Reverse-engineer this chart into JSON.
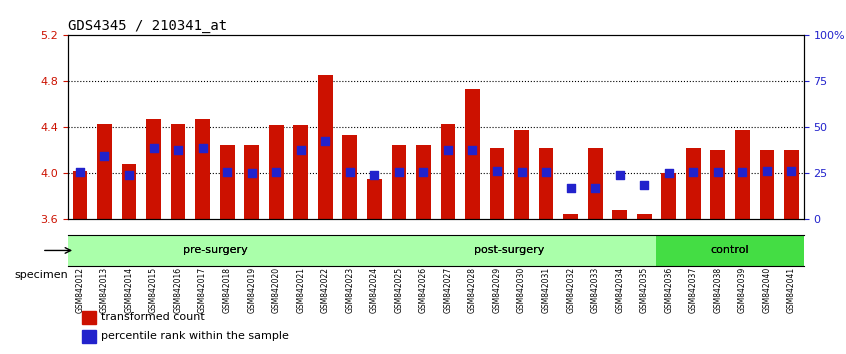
{
  "title": "GDS4345 / 210341_at",
  "samples": [
    "GSM842012",
    "GSM842013",
    "GSM842014",
    "GSM842015",
    "GSM842016",
    "GSM842017",
    "GSM842018",
    "GSM842019",
    "GSM842020",
    "GSM842021",
    "GSM842022",
    "GSM842023",
    "GSM842024",
    "GSM842025",
    "GSM842026",
    "GSM842027",
    "GSM842028",
    "GSM842029",
    "GSM842030",
    "GSM842031",
    "GSM842032",
    "GSM842033",
    "GSM842034",
    "GSM842035",
    "GSM842036",
    "GSM842037",
    "GSM842038",
    "GSM842039",
    "GSM842040",
    "GSM842041"
  ],
  "bar_values": [
    4.02,
    4.43,
    4.08,
    4.47,
    4.43,
    4.47,
    4.25,
    4.25,
    4.42,
    4.42,
    4.86,
    4.33,
    3.95,
    4.25,
    4.25,
    4.43,
    4.73,
    4.22,
    4.38,
    4.22,
    3.65,
    4.22,
    3.68,
    3.65,
    4.0,
    4.22,
    4.2,
    4.38,
    4.2,
    4.2
  ],
  "percentile_values": [
    4.01,
    4.15,
    3.99,
    4.22,
    4.2,
    4.22,
    4.01,
    4.0,
    4.01,
    4.2,
    4.28,
    4.01,
    3.99,
    4.01,
    4.01,
    4.2,
    4.2,
    4.02,
    4.01,
    4.01,
    3.87,
    3.87,
    3.99,
    3.9,
    4.0,
    4.01,
    4.01,
    4.01,
    4.02,
    4.02
  ],
  "groups": [
    {
      "label": "pre-surgery",
      "start": 0,
      "end": 11,
      "color": "#ccffcc"
    },
    {
      "label": "post-surgery",
      "start": 12,
      "end": 23,
      "color": "#ccffcc"
    },
    {
      "label": "control",
      "start": 24,
      "end": 29,
      "color": "#44ee44"
    }
  ],
  "ymin": 3.6,
  "ymax": 5.2,
  "yticks": [
    3.6,
    4.0,
    4.4,
    4.8,
    5.2
  ],
  "ytick_labels": [
    "3.6",
    "4.0",
    "4.4",
    "4.8",
    "5.2"
  ],
  "y2ticks": [
    0,
    25,
    50,
    75,
    100
  ],
  "y2tick_labels": [
    "0",
    "25",
    "50",
    "75",
    "100%"
  ],
  "bar_color": "#cc1100",
  "dot_color": "#2222cc",
  "bg_color": "#ffffff",
  "grid_color": "#000000",
  "xlabel_color": "#000000",
  "ylabel_color": "#cc1100",
  "y2label_color": "#2222cc",
  "legend_red_label": "transformed count",
  "legend_blue_label": "percentile rank within the sample",
  "specimen_label": "specimen"
}
